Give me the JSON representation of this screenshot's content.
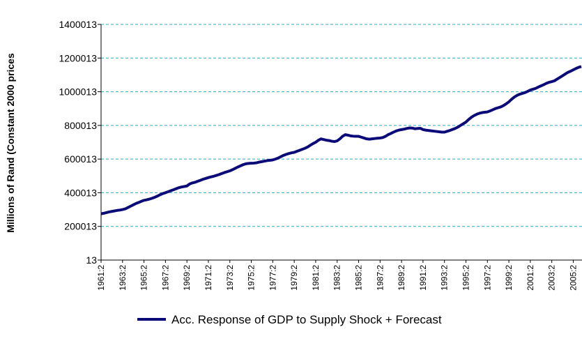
{
  "chart_data": {
    "type": "line",
    "y_label": "Millions of Rand (Constant 2000 prices",
    "categories": [
      "1961:2",
      null,
      null,
      null,
      null,
      null,
      null,
      null,
      "1963:2",
      null,
      null,
      null,
      null,
      null,
      null,
      null,
      "1965:2",
      null,
      null,
      null,
      null,
      null,
      null,
      null,
      "1967:2",
      null,
      null,
      null,
      null,
      null,
      null,
      null,
      "1969:2",
      null,
      null,
      null,
      null,
      null,
      null,
      null,
      "1971:2",
      null,
      null,
      null,
      null,
      null,
      null,
      null,
      "1973:2",
      null,
      null,
      null,
      null,
      null,
      null,
      null,
      "1975:2",
      null,
      null,
      null,
      null,
      null,
      null,
      null,
      "1977:2",
      null,
      null,
      null,
      null,
      null,
      null,
      null,
      "1979:2",
      null,
      null,
      null,
      null,
      null,
      null,
      null,
      "1981:2",
      null,
      null,
      null,
      null,
      null,
      null,
      null,
      "1983:2",
      null,
      null,
      null,
      null,
      null,
      null,
      null,
      "1985:2",
      null,
      null,
      null,
      null,
      null,
      null,
      null,
      "1987:2",
      null,
      null,
      null,
      null,
      null,
      null,
      null,
      "1989:2",
      null,
      null,
      null,
      null,
      null,
      null,
      null,
      "1991:2",
      null,
      null,
      null,
      null,
      null,
      null,
      null,
      "1993:2",
      null,
      null,
      null,
      null,
      null,
      null,
      null,
      "1995:2",
      null,
      null,
      null,
      null,
      null,
      null,
      null,
      "1997:2",
      null,
      null,
      null,
      null,
      null,
      null,
      null,
      "1999:2",
      null,
      null,
      null,
      null,
      null,
      null,
      null,
      "2001:2",
      null,
      null,
      null,
      null,
      null,
      null,
      null,
      "2003:2",
      null,
      null,
      null,
      null,
      null,
      null,
      null,
      "2005:2",
      null,
      null,
      null
    ],
    "series": [
      {
        "name": "Acc. Response of GDP to Supply Shock + Forecast",
        "color": "#0a0a78",
        "values": [
          275000,
          278000,
          282000,
          286000,
          289000,
          292000,
          295000,
          297000,
          300000,
          304000,
          312000,
          320000,
          328000,
          336000,
          342000,
          349000,
          355000,
          358000,
          362000,
          367000,
          373000,
          380000,
          388000,
          395000,
          400000,
          406000,
          412000,
          418000,
          424000,
          430000,
          434000,
          437000,
          440000,
          452000,
          458000,
          462000,
          468000,
          474000,
          480000,
          485000,
          490000,
          494000,
          498000,
          503000,
          508000,
          514000,
          520000,
          525000,
          530000,
          537000,
          545000,
          553000,
          560000,
          567000,
          572000,
          574000,
          575000,
          576000,
          578000,
          582000,
          585000,
          588000,
          591000,
          593000,
          595000,
          600000,
          606000,
          614000,
          622000,
          628000,
          633000,
          637000,
          640000,
          646000,
          652000,
          658000,
          664000,
          672000,
          682000,
          692000,
          700000,
          712000,
          720000,
          716000,
          712000,
          710000,
          706000,
          704000,
          708000,
          720000,
          735000,
          745000,
          742000,
          738000,
          736000,
          735000,
          735000,
          730000,
          725000,
          720000,
          718000,
          720000,
          722000,
          724000,
          725000,
          728000,
          735000,
          745000,
          752000,
          760000,
          767000,
          772000,
          775000,
          778000,
          782000,
          785000,
          784000,
          780000,
          782000,
          783000,
          775000,
          772000,
          770000,
          768000,
          766000,
          764000,
          762000,
          760000,
          760000,
          765000,
          770000,
          776000,
          782000,
          790000,
          800000,
          810000,
          820000,
          835000,
          848000,
          858000,
          866000,
          872000,
          876000,
          878000,
          880000,
          886000,
          893000,
          900000,
          905000,
          910000,
          918000,
          928000,
          940000,
          955000,
          968000,
          978000,
          985000,
          990000,
          995000,
          1002000,
          1010000,
          1015000,
          1020000,
          1028000,
          1035000,
          1042000,
          1050000,
          1056000,
          1060000,
          1065000,
          1075000,
          1085000,
          1095000,
          1105000,
          1115000,
          1122000,
          1130000,
          1138000,
          1145000,
          1150000
        ]
      }
    ],
    "ylim": [
      13,
      1400013
    ],
    "yticks": [
      13,
      200013,
      400013,
      600013,
      800013,
      1000013,
      1200013,
      1400013
    ],
    "grid": true,
    "grid_color": "#29a9c9",
    "legend": "bottom"
  }
}
